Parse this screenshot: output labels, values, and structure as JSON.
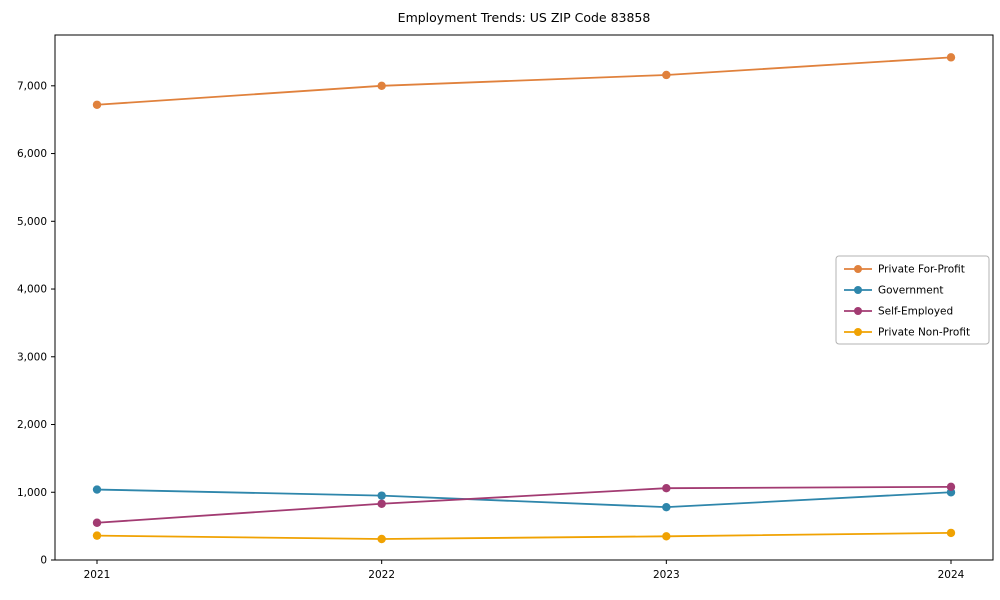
{
  "chart_data": {
    "type": "line",
    "title": "Employment Trends: US ZIP Code 83858",
    "x": [
      2021,
      2022,
      2023,
      2024
    ],
    "xtick_labels": [
      "2021",
      "2022",
      "2023",
      "2024"
    ],
    "series": [
      {
        "name": "Private For-Profit",
        "color": "#E0813C",
        "values": [
          6720,
          7000,
          7160,
          7420
        ]
      },
      {
        "name": "Government",
        "color": "#2E86AB",
        "values": [
          1040,
          950,
          780,
          1000
        ]
      },
      {
        "name": "Self-Employed",
        "color": "#A23B72",
        "values": [
          550,
          830,
          1060,
          1080
        ]
      },
      {
        "name": "Private Non-Profit",
        "color": "#F0A202",
        "values": [
          360,
          310,
          350,
          400
        ]
      }
    ],
    "ylim": [
      0,
      7750
    ],
    "yticks": [
      0,
      1000,
      2000,
      3000,
      4000,
      5000,
      6000,
      7000
    ],
    "ytick_labels": [
      "0",
      "1,000",
      "2,000",
      "3,000",
      "4,000",
      "5,000",
      "6,000",
      "7,000"
    ],
    "xlabel": "",
    "ylabel": "",
    "grid": false,
    "legend_position": "right-center",
    "marker": "o"
  }
}
